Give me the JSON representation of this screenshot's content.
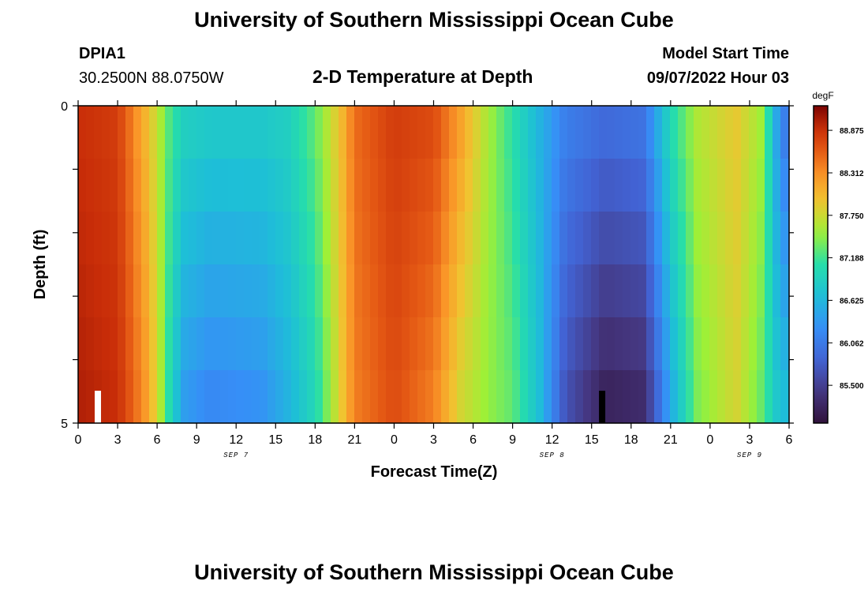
{
  "header": {
    "title": "University of Southern Mississippi Ocean Cube",
    "station": "DPIA1",
    "coords": "30.2500N  88.0750W",
    "plot_title": "2-D Temperature at Depth",
    "model_start_label": "Model Start Time",
    "model_start_value": "09/07/2022 Hour 03"
  },
  "footer": {
    "title": "University of Southern Mississippi Ocean Cube"
  },
  "chart_data": {
    "type": "heatmap",
    "title": "2-D Temperature at Depth",
    "xlabel": "Forecast Time(Z)",
    "ylabel": "Depth (ft)",
    "x_tick_labels": [
      "0",
      "3",
      "6",
      "9",
      "12",
      "15",
      "18",
      "21",
      "0",
      "3",
      "6",
      "9",
      "12",
      "15",
      "18",
      "21",
      "0",
      "3",
      "6"
    ],
    "x_hours": [
      0,
      3,
      6,
      9,
      12,
      15,
      18,
      21,
      24,
      27,
      30,
      33,
      36,
      39,
      42,
      45,
      48,
      51,
      54
    ],
    "date_labels": [
      {
        "label": "SEP 7",
        "hour": 12
      },
      {
        "label": "SEP 8",
        "hour": 36
      },
      {
        "label": "SEP 9",
        "hour": 51
      }
    ],
    "y_tick_labels": [
      "0",
      "5"
    ],
    "ylim": [
      0,
      5
    ],
    "depth_levels": [
      0,
      1,
      2,
      3,
      4,
      5
    ],
    "hours_range": [
      0,
      54
    ],
    "colorbar": {
      "units": "degF",
      "ticks": [
        "88.875",
        "88.312",
        "87.750",
        "87.188",
        "86.625",
        "86.062",
        "85.500"
      ],
      "range": [
        85.0,
        89.2
      ]
    },
    "surface_profile": [
      {
        "hour": 0,
        "temp": 88.9
      },
      {
        "hour": 3,
        "temp": 88.8
      },
      {
        "hour": 5,
        "temp": 88.1
      },
      {
        "hour": 6,
        "temp": 87.7
      },
      {
        "hour": 7,
        "temp": 87.2
      },
      {
        "hour": 8,
        "temp": 86.9
      },
      {
        "hour": 10,
        "temp": 86.8
      },
      {
        "hour": 14,
        "temp": 86.8
      },
      {
        "hour": 16,
        "temp": 86.9
      },
      {
        "hour": 18,
        "temp": 87.3
      },
      {
        "hour": 20,
        "temp": 88.0
      },
      {
        "hour": 21,
        "temp": 88.5
      },
      {
        "hour": 24,
        "temp": 88.8
      },
      {
        "hour": 27,
        "temp": 88.7
      },
      {
        "hour": 29,
        "temp": 88.2
      },
      {
        "hour": 31,
        "temp": 87.6
      },
      {
        "hour": 33,
        "temp": 87.1
      },
      {
        "hour": 35,
        "temp": 86.6
      },
      {
        "hour": 37,
        "temp": 86.1
      },
      {
        "hour": 40,
        "temp": 85.9
      },
      {
        "hour": 43,
        "temp": 86.0
      },
      {
        "hour": 44,
        "temp": 86.5
      },
      {
        "hour": 45,
        "temp": 87.0
      },
      {
        "hour": 47,
        "temp": 87.6
      },
      {
        "hour": 50,
        "temp": 87.9
      },
      {
        "hour": 52,
        "temp": 87.5
      },
      {
        "hour": 53,
        "temp": 86.5
      },
      {
        "hour": 54,
        "temp": 85.9
      }
    ],
    "bottom_profile": [
      {
        "hour": 0,
        "temp": 89.0
      },
      {
        "hour": 3,
        "temp": 88.9
      },
      {
        "hour": 5,
        "temp": 88.3
      },
      {
        "hour": 6,
        "temp": 87.8
      },
      {
        "hour": 7,
        "temp": 87.0
      },
      {
        "hour": 8,
        "temp": 86.4
      },
      {
        "hour": 10,
        "temp": 86.2
      },
      {
        "hour": 14,
        "temp": 86.3
      },
      {
        "hour": 16,
        "temp": 86.6
      },
      {
        "hour": 18,
        "temp": 87.0
      },
      {
        "hour": 20,
        "temp": 87.9
      },
      {
        "hour": 21,
        "temp": 88.4
      },
      {
        "hour": 24,
        "temp": 88.7
      },
      {
        "hour": 27,
        "temp": 88.4
      },
      {
        "hour": 29,
        "temp": 87.8
      },
      {
        "hour": 31,
        "temp": 87.5
      },
      {
        "hour": 33,
        "temp": 87.3
      },
      {
        "hour": 35,
        "temp": 86.7
      },
      {
        "hour": 37,
        "temp": 85.7
      },
      {
        "hour": 40,
        "temp": 85.2
      },
      {
        "hour": 43,
        "temp": 85.3
      },
      {
        "hour": 44,
        "temp": 85.9
      },
      {
        "hour": 45,
        "temp": 86.5
      },
      {
        "hour": 47,
        "temp": 87.4
      },
      {
        "hour": 50,
        "temp": 87.8
      },
      {
        "hour": 52,
        "temp": 87.3
      },
      {
        "hour": 53,
        "temp": 86.8
      },
      {
        "hour": 54,
        "temp": 86.6
      }
    ],
    "markers": [
      {
        "hour": 1.5,
        "color": "#ffffff"
      },
      {
        "hour": 39.8,
        "color": "#000000"
      }
    ]
  }
}
